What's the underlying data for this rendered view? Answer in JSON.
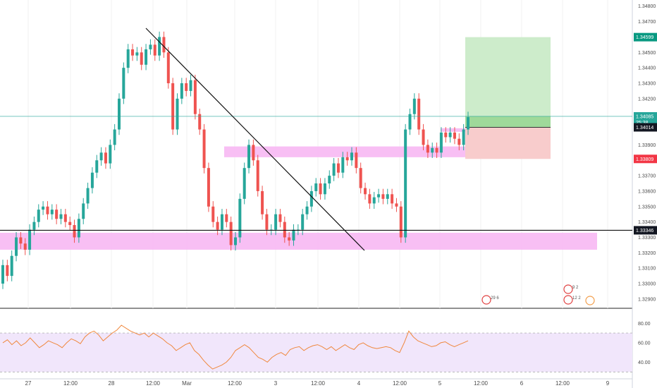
{
  "chart_data": {
    "type": "candlestick",
    "instrument_colors": {
      "up": "#26a69a",
      "down": "#ef5350",
      "grid": "#e8e8e8"
    },
    "price_axis": {
      "ticks": [
        "1.34800",
        "1.34700",
        "1.34600",
        "1.34500",
        "1.34400",
        "1.34300",
        "1.34200",
        "1.34100",
        "1.34000",
        "1.33900",
        "1.33800",
        "1.33700",
        "1.33600",
        "1.33500",
        "1.33400",
        "1.33300",
        "1.33200",
        "1.33100",
        "1.33000",
        "1.32900"
      ],
      "range": [
        1.3284,
        1.3484
      ]
    },
    "time_axis": {
      "labels": [
        "27",
        "12:00",
        "28",
        "12:00",
        "Mar",
        "12:00",
        "3",
        "12:00",
        "4",
        "12:00",
        "5",
        "12:00",
        "6",
        "12:00",
        "9"
      ]
    },
    "price_tags": [
      {
        "label": "1.34599",
        "color": "#089981",
        "value": 1.34599
      },
      {
        "label": "1.34085",
        "color": "#26a69a",
        "value": 1.34085
      },
      {
        "label": "25:38",
        "color": "#26a69a",
        "value": 1.34045
      },
      {
        "label": "1.34014",
        "color": "#131722",
        "value": 1.34014
      },
      {
        "label": "1.33809",
        "color": "#f23645",
        "value": 1.33809
      },
      {
        "label": "1.33346",
        "color": "#131722",
        "value": 1.33346
      }
    ],
    "series": [
      {
        "name": "close",
        "values": [
          1.3312,
          1.3305,
          1.3318,
          1.333,
          1.3326,
          1.3322,
          1.3335,
          1.334,
          1.3348,
          1.335,
          1.3345,
          1.3348,
          1.3342,
          1.3345,
          1.334,
          1.3338,
          1.333,
          1.3342,
          1.3352,
          1.3362,
          1.3372,
          1.338,
          1.3385,
          1.3378,
          1.339,
          1.34,
          1.342,
          1.344,
          1.3452,
          1.3448,
          1.345,
          1.3442,
          1.3452,
          1.3455,
          1.3448,
          1.346,
          1.345,
          1.343,
          1.34,
          1.342,
          1.343,
          1.3425,
          1.3432,
          1.341,
          1.34,
          1.3375,
          1.335,
          1.334,
          1.3335,
          1.3345,
          1.334,
          1.3325,
          1.333,
          1.3355,
          1.3375,
          1.339,
          1.338,
          1.336,
          1.3345,
          1.3335,
          1.3335,
          1.3345,
          1.334,
          1.333,
          1.3328,
          1.3335,
          1.3335,
          1.3345,
          1.335,
          1.336,
          1.3365,
          1.3358,
          1.3365,
          1.337,
          1.3378,
          1.3372,
          1.3382,
          1.338,
          1.3385,
          1.3375,
          1.3362,
          1.3358,
          1.3352,
          1.3356,
          1.3358,
          1.3355,
          1.3358,
          1.3352,
          1.335,
          1.333,
          1.34,
          1.341,
          1.342,
          1.34,
          1.339,
          1.3385,
          1.3388,
          1.3385,
          1.3398,
          1.3395,
          1.3398,
          1.3394,
          1.339,
          1.34,
          1.3408
        ]
      }
    ],
    "zones": [
      {
        "name": "support-zone",
        "from": 1.3322,
        "to": 1.3333
      },
      {
        "name": "resistance-zone",
        "from": 1.3382,
        "to": 1.3389
      },
      {
        "name": "small-zone",
        "from": 1.33985,
        "to": 1.34008
      }
    ],
    "position": {
      "entry": 1.34014,
      "target": 1.34599,
      "stop": 1.33809
    },
    "rsi": {
      "ticks": [
        "80.00",
        "60.00",
        "40.00"
      ],
      "upper": 70,
      "lower": 30,
      "range": [
        28,
        86
      ],
      "values": [
        60,
        63,
        58,
        62,
        57,
        60,
        65,
        60,
        55,
        58,
        62,
        60,
        58,
        55,
        60,
        64,
        62,
        59,
        66,
        70,
        72,
        68,
        62,
        66,
        70,
        73,
        78,
        75,
        72,
        70,
        68,
        70,
        66,
        70,
        67,
        64,
        60,
        57,
        52,
        55,
        58,
        60,
        52,
        48,
        42,
        37,
        33,
        35,
        37,
        40,
        45,
        52,
        55,
        58,
        55,
        50,
        45,
        43,
        40,
        45,
        48,
        50,
        47,
        53,
        55,
        56,
        52,
        55,
        57,
        58,
        56,
        53,
        56,
        52,
        55,
        58,
        55,
        53,
        58,
        60,
        57,
        55,
        54,
        55,
        56,
        55,
        52,
        50,
        60,
        72,
        66,
        62,
        60,
        58,
        56,
        57,
        60,
        61,
        58,
        56,
        58,
        60,
        62
      ]
    },
    "event_markers": [
      "29 6",
      "9 2",
      "12 2"
    ]
  }
}
